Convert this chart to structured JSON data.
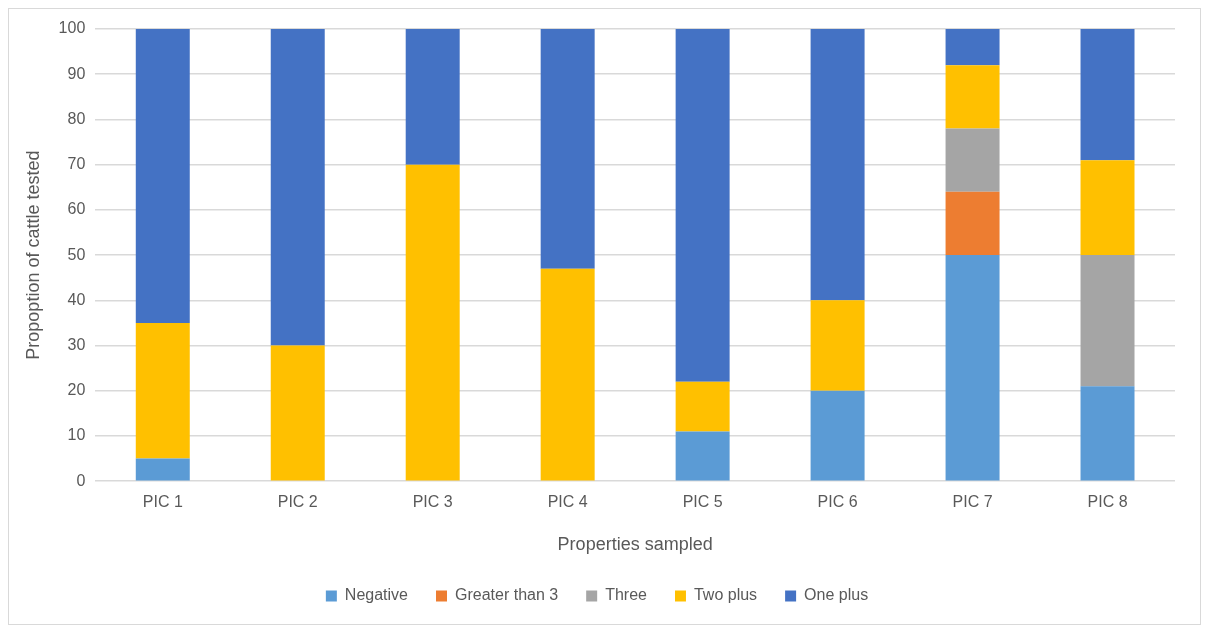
{
  "chart_data": {
    "type": "bar",
    "stacked": true,
    "xlabel": "Properties sampled",
    "ylabel": "Propoption of cattle tested",
    "categories": [
      "PIC 1",
      "PIC 2",
      "PIC 3",
      "PIC 4",
      "PIC 5",
      "PIC 6",
      "PIC 7",
      "PIC 8"
    ],
    "series": [
      {
        "name": "Negative",
        "color": "#5b9bd5",
        "values": [
          5,
          null,
          null,
          null,
          11,
          20,
          50,
          21
        ]
      },
      {
        "name": "Greater than 3",
        "color": "#ed7d31",
        "values": [
          null,
          null,
          null,
          null,
          null,
          null,
          14,
          null
        ]
      },
      {
        "name": "Three",
        "color": "#a5a5a5",
        "values": [
          null,
          null,
          null,
          null,
          null,
          null,
          14,
          29
        ]
      },
      {
        "name": "Two plus",
        "color": "#ffc000",
        "values": [
          30,
          30,
          70,
          47,
          11,
          20,
          14,
          21
        ]
      },
      {
        "name": "One plus",
        "color": "#4472c4",
        "values": [
          65,
          70,
          30,
          53,
          78,
          60,
          8,
          29
        ]
      }
    ],
    "ylim": [
      0,
      100
    ],
    "yticks": [
      0,
      10,
      20,
      30,
      40,
      50,
      60,
      70,
      80,
      90,
      100
    ],
    "grid": "y",
    "legend": "bottom"
  }
}
